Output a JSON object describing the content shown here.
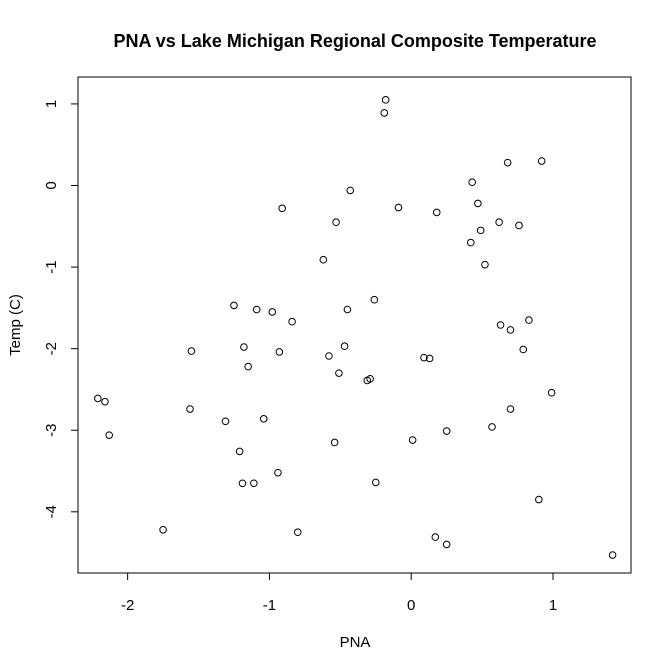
{
  "chart_data": {
    "type": "scatter",
    "title": "PNA vs Lake Michigan Regional Composite Temperature",
    "xlabel": "PNA",
    "ylabel": "Temp (C)",
    "xlim": [
      -2.35,
      1.55
    ],
    "ylim": [
      -4.75,
      1.33
    ],
    "xticks": [
      -2,
      -1,
      0,
      1
    ],
    "xtick_labels": [
      "-2",
      "-1",
      "0",
      "1"
    ],
    "yticks": [
      1,
      0,
      -1,
      -2,
      -3,
      -4
    ],
    "ytick_labels": [
      "1",
      "0",
      "-1",
      "-2",
      "-3",
      "-4"
    ],
    "grid": false,
    "marker": "open-circle",
    "points": [
      [
        -0.18,
        1.05
      ],
      [
        -0.19,
        0.89
      ],
      [
        0.92,
        0.3
      ],
      [
        0.68,
        0.28
      ],
      [
        0.43,
        0.04
      ],
      [
        -0.43,
        -0.06
      ],
      [
        0.47,
        -0.22
      ],
      [
        -0.09,
        -0.27
      ],
      [
        -0.91,
        -0.28
      ],
      [
        0.18,
        -0.33
      ],
      [
        -0.53,
        -0.45
      ],
      [
        0.62,
        -0.45
      ],
      [
        0.76,
        -0.49
      ],
      [
        0.49,
        -0.55
      ],
      [
        0.42,
        -0.7
      ],
      [
        -0.62,
        -0.91
      ],
      [
        0.52,
        -0.97
      ],
      [
        -1.25,
        -1.47
      ],
      [
        -0.26,
        -1.4
      ],
      [
        -1.09,
        -1.52
      ],
      [
        -0.98,
        -1.55
      ],
      [
        -0.45,
        -1.52
      ],
      [
        -0.84,
        -1.67
      ],
      [
        0.83,
        -1.65
      ],
      [
        0.63,
        -1.71
      ],
      [
        0.7,
        -1.77
      ],
      [
        -1.18,
        -1.98
      ],
      [
        -0.47,
        -1.97
      ],
      [
        0.79,
        -2.01
      ],
      [
        -1.55,
        -2.03
      ],
      [
        -0.93,
        -2.04
      ],
      [
        -0.58,
        -2.09
      ],
      [
        0.09,
        -2.11
      ],
      [
        0.13,
        -2.12
      ],
      [
        -1.15,
        -2.22
      ],
      [
        -0.51,
        -2.3
      ],
      [
        -0.29,
        -2.37
      ],
      [
        -0.31,
        -2.39
      ],
      [
        -2.21,
        -2.61
      ],
      [
        -2.16,
        -2.65
      ],
      [
        0.99,
        -2.54
      ],
      [
        -1.56,
        -2.74
      ],
      [
        0.7,
        -2.74
      ],
      [
        -1.04,
        -2.86
      ],
      [
        -1.31,
        -2.89
      ],
      [
        0.57,
        -2.96
      ],
      [
        0.25,
        -3.01
      ],
      [
        -2.13,
        -3.06
      ],
      [
        0.01,
        -3.12
      ],
      [
        -0.54,
        -3.15
      ],
      [
        -1.21,
        -3.26
      ],
      [
        -0.94,
        -3.52
      ],
      [
        -1.19,
        -3.65
      ],
      [
        -1.11,
        -3.65
      ],
      [
        -0.25,
        -3.64
      ],
      [
        0.9,
        -3.85
      ],
      [
        -1.75,
        -4.22
      ],
      [
        -0.8,
        -4.25
      ],
      [
        0.17,
        -4.31
      ],
      [
        0.25,
        -4.4
      ],
      [
        1.42,
        -4.53
      ]
    ]
  }
}
